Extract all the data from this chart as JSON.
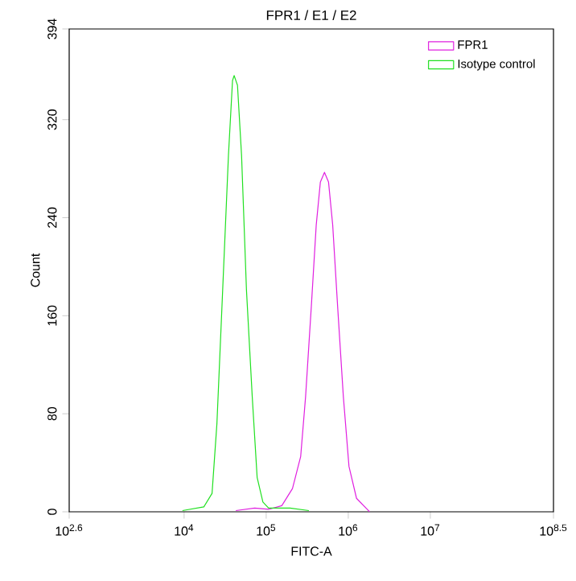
{
  "chart_data": {
    "type": "line",
    "title": "FPR1 / E1 / E2",
    "xlabel": "FITC-A",
    "ylabel": "Count",
    "log": "x",
    "grid": false,
    "legend": "top right",
    "marker": "none",
    "line_style": "solid",
    "xlim": [
      398.1,
      316227766
    ],
    "ylim": [
      0,
      394
    ],
    "xticks": [
      {
        "value": 398.1,
        "label": "10$^{2.6}$"
      },
      {
        "value": 10000,
        "label": "10$^{4}$"
      },
      {
        "value": 100000,
        "label": "10$^{5}$"
      },
      {
        "value": 1000000,
        "label": "10$^{6}$"
      },
      {
        "value": 10000000,
        "label": "10$^{7}$"
      },
      {
        "value": 316227766,
        "label": "10$^{8.5}$"
      }
    ],
    "yticks": [
      0,
      80,
      160,
      240,
      320,
      394
    ],
    "series": [
      {
        "name": "FPR1",
        "color": "#e020e0",
        "x": [
          42700,
          72400,
          107000,
          155000,
          209000,
          263000,
          302000,
          355000,
          407000,
          457000,
          513000,
          575000,
          646000,
          741000,
          871000,
          1020000,
          1260000,
          1700000,
          1820000
        ],
        "values": [
          1,
          3,
          2,
          5,
          19,
          45,
          94,
          168,
          234,
          269,
          277,
          269,
          234,
          168,
          94,
          37,
          11,
          2,
          0
        ]
      },
      {
        "name": "Isotype control",
        "color": "#20e020",
        "x": [
          9550,
          17400,
          21900,
          25100,
          29500,
          34700,
          38900,
          40700,
          44700,
          50100,
          57500,
          67600,
          77600,
          91200,
          107000,
          195000,
          331000
        ],
        "values": [
          1,
          4,
          15,
          72,
          181,
          291,
          352,
          356,
          348,
          291,
          181,
          94,
          28,
          8,
          3,
          3,
          1
        ]
      }
    ]
  }
}
